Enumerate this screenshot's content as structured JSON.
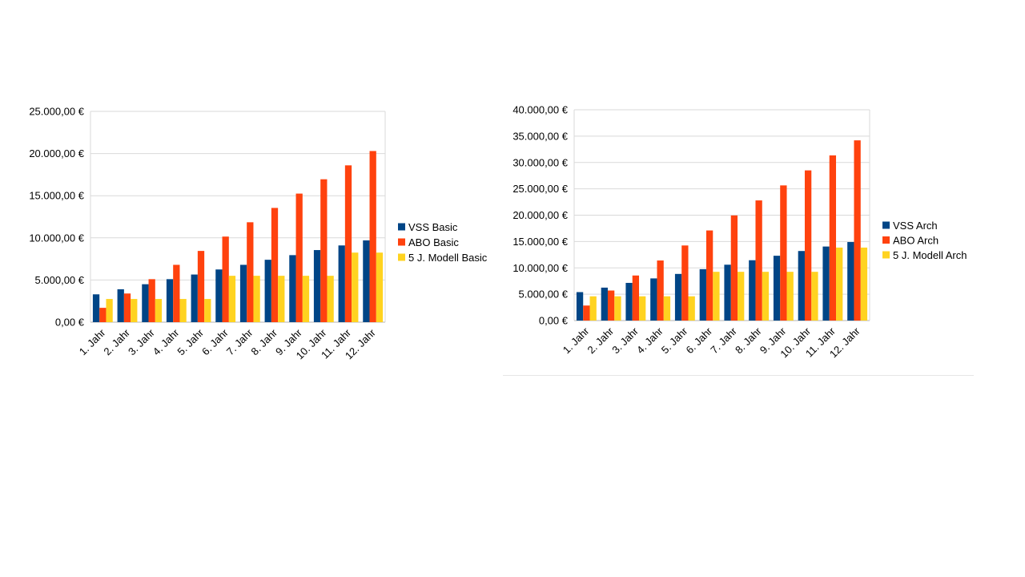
{
  "colors": {
    "vss": "#004586",
    "abo": "#ff420e",
    "modell": "#ffd320",
    "grid": "#d9d9d9",
    "axis": "#b3b3b3"
  },
  "chart_data": [
    {
      "type": "bar",
      "categories": [
        "1. Jahr",
        "2. Jahr",
        "3. Jahr",
        "4. Jahr",
        "5. Jahr",
        "6. Jahr",
        "7. Jahr",
        "8. Jahr",
        "9. Jahr",
        "10. Jahr",
        "11. Jahr",
        "12. Jahr"
      ],
      "series": [
        {
          "name": "VSS Basic",
          "color": "#004586",
          "values": [
            3300,
            3900,
            4500,
            5100,
            5650,
            6250,
            6800,
            7400,
            7950,
            8550,
            9100,
            9700
          ]
        },
        {
          "name": "ABO Basic",
          "color": "#ff420e",
          "values": [
            1700,
            3400,
            5100,
            6800,
            8450,
            10150,
            11850,
            13550,
            15250,
            16950,
            18600,
            20300
          ]
        },
        {
          "name": "5 J. Modell Basic",
          "color": "#ffd320",
          "values": [
            2750,
            2750,
            2750,
            2750,
            2750,
            5500,
            5500,
            5500,
            5500,
            5500,
            8250,
            8250
          ]
        }
      ],
      "yticks": [
        "0,00 €",
        "5.000,00 €",
        "10.000,00 €",
        "15.000,00 €",
        "20.000,00 €",
        "25.000,00 €"
      ],
      "ylim": [
        0,
        25000
      ],
      "grid": true,
      "legend": "right"
    },
    {
      "type": "bar",
      "categories": [
        "1. Jahr",
        "2. Jahr",
        "3. Jahr",
        "4. Jahr",
        "5. Jahr",
        "6. Jahr",
        "7. Jahr",
        "8. Jahr",
        "9. Jahr",
        "10. Jahr",
        "11. Jahr",
        "12. Jahr"
      ],
      "series": [
        {
          "name": "VSS Arch",
          "color": "#004586",
          "values": [
            5400,
            6250,
            7150,
            8000,
            8850,
            9750,
            10600,
            11450,
            12300,
            13200,
            14050,
            14900
          ]
        },
        {
          "name": "ABO Arch",
          "color": "#ff420e",
          "values": [
            2850,
            5700,
            8550,
            11400,
            14250,
            17100,
            19950,
            22800,
            25650,
            28500,
            31350,
            34200
          ]
        },
        {
          "name": "5 J. Modell Arch",
          "color": "#ffd320",
          "values": [
            4600,
            4600,
            4600,
            4600,
            4600,
            9250,
            9250,
            9250,
            9250,
            9250,
            13850,
            13850
          ]
        }
      ],
      "yticks": [
        "0,00 €",
        "5.000,00 €",
        "10.000,00 €",
        "15.000,00 €",
        "20.000,00 €",
        "25.000,00 €",
        "30.000,00 €",
        "35.000,00 €",
        "40.000,00 €"
      ],
      "ylim": [
        0,
        40000
      ],
      "grid": true,
      "legend": "right"
    }
  ]
}
